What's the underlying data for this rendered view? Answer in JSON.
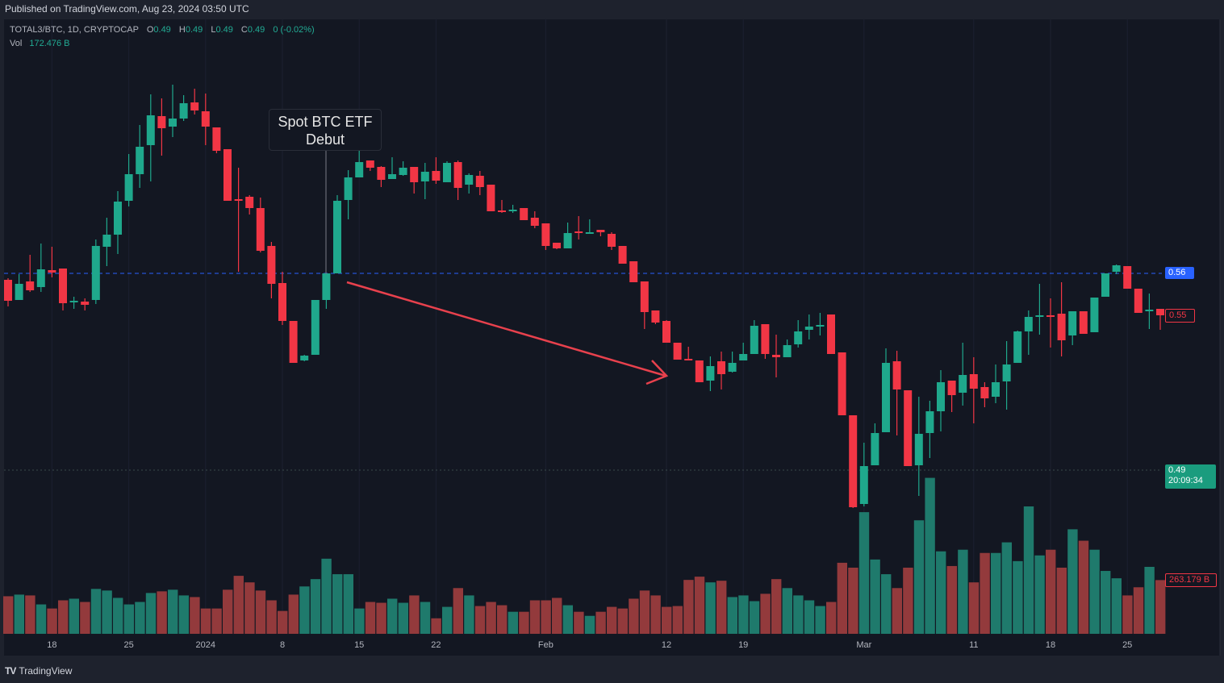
{
  "header": {
    "published": "Published on TradingView.com, Aug 23, 2024 03:50 UTC"
  },
  "legend": {
    "symbol": "TOTAL3/BTC, 1D, CRYPTOCAP",
    "o_label": "O",
    "o_value": "0.49",
    "h_label": "H",
    "h_value": "0.49",
    "l_label": "L",
    "l_value": "0.49",
    "c_label": "C",
    "c_value": "0.49",
    "change": "0 (-0.02%)",
    "vol_label": "Vol",
    "vol_value": "172.476 B"
  },
  "annotation": {
    "line1": "Spot BTC ETF",
    "line2": "Debut"
  },
  "price_labels": {
    "horizontal_line": "0.56",
    "last_candle": "0.55",
    "current_price": "0.49",
    "countdown": "20:09:34",
    "volume_last": "263.179 B"
  },
  "footer": {
    "brand": "TradingView"
  },
  "colors": {
    "up": "#1fa88c",
    "down": "#f23645",
    "vol_up": "#1f7a6c",
    "vol_down": "#933a3c",
    "hline": "#2962ff",
    "arrow": "#e8414d",
    "background": "#131722"
  },
  "chart_data": {
    "type": "candlestick",
    "title": "TOTAL3/BTC, 1D, CRYPTOCAP",
    "x_ticks": [
      "18",
      "25",
      "2024",
      "8",
      "15",
      "22",
      "Feb",
      "12",
      "19",
      "Mar",
      "11",
      "18",
      "25"
    ],
    "x_tick_day_index": [
      4,
      11,
      18,
      25,
      32,
      39,
      49,
      60,
      67,
      78,
      88,
      95,
      102
    ],
    "horizontal_line_price": 0.56,
    "y_range": [
      0.5,
      0.61
    ],
    "ohlc": [
      [
        0.5584,
        0.5588,
        0.5518,
        0.5532
      ],
      [
        0.5534,
        0.5598,
        0.5534,
        0.5574
      ],
      [
        0.558,
        0.5646,
        0.5554,
        0.5558
      ],
      [
        0.5566,
        0.5674,
        0.5554,
        0.561
      ],
      [
        0.5608,
        0.5666,
        0.559,
        0.5602
      ],
      [
        0.5612,
        0.5612,
        0.5508,
        0.5526
      ],
      [
        0.553,
        0.5542,
        0.5512,
        0.5532
      ],
      [
        0.553,
        0.5538,
        0.5508,
        0.5522
      ],
      [
        0.5534,
        0.5684,
        0.5524,
        0.5668
      ],
      [
        0.5666,
        0.5738,
        0.5618,
        0.5696
      ],
      [
        0.5696,
        0.5804,
        0.5648,
        0.5778
      ],
      [
        0.578,
        0.5896,
        0.5766,
        0.5846
      ],
      [
        0.5846,
        0.5968,
        0.5812,
        0.5914
      ],
      [
        0.5918,
        0.6044,
        0.5828,
        0.5992
      ],
      [
        0.599,
        0.6034,
        0.5892,
        0.596
      ],
      [
        0.5964,
        0.6068,
        0.5938,
        0.5984
      ],
      [
        0.5984,
        0.6042,
        0.5978,
        0.6022
      ],
      [
        0.6024,
        0.6058,
        0.5994,
        0.6004
      ],
      [
        0.6002,
        0.6046,
        0.5918,
        0.5964
      ],
      [
        0.5962,
        0.5962,
        0.5898,
        0.5904
      ],
      [
        0.5908,
        0.5908,
        0.578,
        0.578
      ],
      [
        0.5784,
        0.5862,
        0.5604,
        0.5782
      ],
      [
        0.579,
        0.5794,
        0.5746,
        0.5762
      ],
      [
        0.5762,
        0.5788,
        0.5652,
        0.5656
      ],
      [
        0.5668,
        0.5678,
        0.5538,
        0.5574
      ],
      [
        0.5576,
        0.5604,
        0.5472,
        0.5482
      ],
      [
        0.5482,
        0.5482,
        0.5378,
        0.5378
      ],
      [
        0.5384,
        0.5398,
        0.5382,
        0.5396
      ],
      [
        0.5398,
        0.5534,
        0.5398,
        0.5534
      ],
      [
        0.5534,
        0.56,
        0.5512,
        0.56
      ],
      [
        0.56,
        0.5794,
        0.56,
        0.578
      ],
      [
        0.5782,
        0.5856,
        0.5734,
        0.5838
      ],
      [
        0.5838,
        0.5916,
        0.5838,
        0.5876
      ],
      [
        0.588,
        0.588,
        0.5854,
        0.5862
      ],
      [
        0.5864,
        0.5866,
        0.5814,
        0.5832
      ],
      [
        0.5834,
        0.5888,
        0.5834,
        0.5846
      ],
      [
        0.5844,
        0.5878,
        0.5842,
        0.5862
      ],
      [
        0.5864,
        0.5864,
        0.5798,
        0.5826
      ],
      [
        0.5828,
        0.5874,
        0.5784,
        0.5852
      ],
      [
        0.5854,
        0.5888,
        0.5822,
        0.583
      ],
      [
        0.5826,
        0.5878,
        0.5826,
        0.5874
      ],
      [
        0.5876,
        0.588,
        0.5782,
        0.5812
      ],
      [
        0.582,
        0.5848,
        0.5798,
        0.5844
      ],
      [
        0.5842,
        0.5854,
        0.5794,
        0.5814
      ],
      [
        0.582,
        0.582,
        0.5754,
        0.5754
      ],
      [
        0.5756,
        0.5782,
        0.575,
        0.5754
      ],
      [
        0.5756,
        0.577,
        0.575,
        0.5758
      ],
      [
        0.5762,
        0.5762,
        0.5732,
        0.5732
      ],
      [
        0.5738,
        0.5754,
        0.5712,
        0.5718
      ],
      [
        0.5724,
        0.5724,
        0.5658,
        0.5668
      ],
      [
        0.5676,
        0.5676,
        0.566,
        0.5662
      ],
      [
        0.5662,
        0.5726,
        0.5662,
        0.57
      ],
      [
        0.5704,
        0.5742,
        0.5684,
        0.57
      ],
      [
        0.57,
        0.5734,
        0.57,
        0.5702
      ],
      [
        0.5708,
        0.5708,
        0.5692,
        0.5702
      ],
      [
        0.5698,
        0.5702,
        0.5658,
        0.5666
      ],
      [
        0.5668,
        0.5668,
        0.5624,
        0.5624
      ],
      [
        0.563,
        0.563,
        0.5578,
        0.5578
      ],
      [
        0.558,
        0.558,
        0.5462,
        0.5504
      ],
      [
        0.5508,
        0.5508,
        0.5474,
        0.5478
      ],
      [
        0.5482,
        0.5484,
        0.5428,
        0.5428
      ],
      [
        0.5428,
        0.5428,
        0.5386,
        0.5386
      ],
      [
        0.5388,
        0.5418,
        0.5384,
        0.5384
      ],
      [
        0.5384,
        0.5384,
        0.533,
        0.533
      ],
      [
        0.5334,
        0.5394,
        0.5308,
        0.537
      ],
      [
        0.5382,
        0.5406,
        0.5312,
        0.535
      ],
      [
        0.5356,
        0.5406,
        0.5354,
        0.5378
      ],
      [
        0.5384,
        0.5428,
        0.5384,
        0.54
      ],
      [
        0.54,
        0.5484,
        0.54,
        0.547
      ],
      [
        0.5474,
        0.5474,
        0.5388,
        0.54
      ],
      [
        0.5398,
        0.5448,
        0.5342,
        0.5392
      ],
      [
        0.5392,
        0.5436,
        0.5392,
        0.5422
      ],
      [
        0.5424,
        0.5484,
        0.5416,
        0.5456
      ],
      [
        0.546,
        0.5498,
        0.5436,
        0.5468
      ],
      [
        0.5468,
        0.5502,
        0.5446,
        0.5472
      ],
      [
        0.5498,
        0.5498,
        0.54,
        0.54
      ],
      [
        0.5404,
        0.5404,
        0.5248,
        0.5248
      ],
      [
        0.5248,
        0.5248,
        0.5018,
        0.502
      ],
      [
        0.5028,
        0.518,
        0.5022,
        0.5122
      ],
      [
        0.5124,
        0.5228,
        0.5124,
        0.5204
      ],
      [
        0.5206,
        0.5414,
        0.5206,
        0.5378
      ],
      [
        0.5382,
        0.5408,
        0.5198,
        0.5312
      ],
      [
        0.531,
        0.531,
        0.5122,
        0.5122
      ],
      [
        0.5124,
        0.5294,
        0.5048,
        0.5202
      ],
      [
        0.5204,
        0.5284,
        0.5142,
        0.5258
      ],
      [
        0.5258,
        0.536,
        0.5208,
        0.533
      ],
      [
        0.5334,
        0.5334,
        0.5256,
        0.5298
      ],
      [
        0.5304,
        0.5428,
        0.5272,
        0.5348
      ],
      [
        0.535,
        0.5392,
        0.5228,
        0.5314
      ],
      [
        0.5318,
        0.533,
        0.5268,
        0.529
      ],
      [
        0.5294,
        0.5374,
        0.5278,
        0.533
      ],
      [
        0.5332,
        0.5432,
        0.5262,
        0.5374
      ],
      [
        0.5378,
        0.5458,
        0.5378,
        0.5456
      ],
      [
        0.5456,
        0.5508,
        0.5398,
        0.5492
      ],
      [
        0.5494,
        0.5574,
        0.5448,
        0.5496
      ],
      [
        0.5496,
        0.5538,
        0.5416,
        0.5492
      ],
      [
        0.55,
        0.5578,
        0.5394,
        0.5434
      ],
      [
        0.5446,
        0.5506,
        0.5422,
        0.5506
      ],
      [
        0.5506,
        0.5506,
        0.545,
        0.545
      ],
      [
        0.5454,
        0.554,
        0.5454,
        0.554
      ],
      [
        0.5542,
        0.56,
        0.5542,
        0.56
      ],
      [
        0.5604,
        0.5622,
        0.5598,
        0.562
      ],
      [
        0.5618,
        0.5618,
        0.5562,
        0.5562
      ],
      [
        0.5562,
        0.5562,
        0.5502,
        0.5502
      ],
      [
        0.5506,
        0.555,
        0.5462,
        0.551
      ],
      [
        0.5512,
        0.5512,
        0.546,
        0.5496
      ]
    ],
    "volume_billions": [
      184,
      192,
      188,
      144,
      124,
      164,
      172,
      156,
      220,
      212,
      176,
      144,
      156,
      200,
      208,
      216,
      188,
      180,
      124,
      124,
      216,
      284,
      252,
      212,
      164,
      112,
      192,
      232,
      268,
      368,
      292,
      292,
      124,
      156,
      152,
      172,
      152,
      188,
      156,
      76,
      132,
      224,
      188,
      136,
      156,
      140,
      108,
      108,
      164,
      164,
      176,
      140,
      108,
      88,
      108,
      132,
      124,
      172,
      212,
      188,
      132,
      136,
      264,
      280,
      252,
      260,
      180,
      188,
      160,
      196,
      268,
      224,
      188,
      164,
      136,
      156,
      348,
      324,
      596,
      364,
      292,
      224,
      324,
      556,
      764,
      404,
      332,
      412,
      252,
      396,
      396,
      448,
      356,
      624,
      384,
      412,
      324,
      512,
      456,
      412,
      308,
      272,
      188,
      228,
      328,
      263.179
    ]
  }
}
